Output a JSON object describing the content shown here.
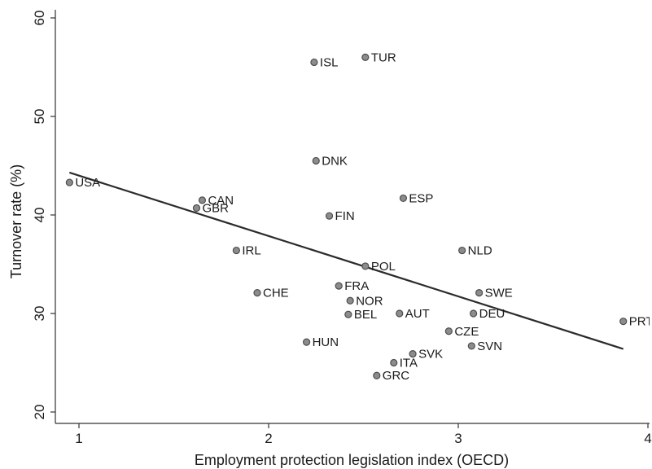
{
  "chart_data": {
    "type": "scatter",
    "title": "",
    "xlabel": "Employment protection legislation index (OECD)",
    "ylabel": "Turnover rate (%)",
    "xlim": [
      0.95,
      4.0
    ],
    "ylim": [
      20,
      60
    ],
    "xticks": [
      1,
      2,
      3,
      4
    ],
    "yticks": [
      20,
      30,
      40,
      50,
      60
    ],
    "x_tick_labels": [
      "1",
      "2",
      "3",
      "4"
    ],
    "y_tick_labels": [
      "20",
      "30",
      "40",
      "50",
      "60"
    ],
    "grid": false,
    "legend": "none",
    "points": [
      {
        "label": "USA",
        "x": 0.95,
        "y": 43.3
      },
      {
        "label": "ISL",
        "x": 2.24,
        "y": 55.5
      },
      {
        "label": "TUR",
        "x": 2.51,
        "y": 56.0
      },
      {
        "label": "DNK",
        "x": 2.25,
        "y": 45.5
      },
      {
        "label": "CAN",
        "x": 1.65,
        "y": 41.5
      },
      {
        "label": "GBR",
        "x": 1.62,
        "y": 40.7
      },
      {
        "label": "ESP",
        "x": 2.71,
        "y": 41.7
      },
      {
        "label": "FIN",
        "x": 2.32,
        "y": 39.9
      },
      {
        "label": "IRL",
        "x": 1.83,
        "y": 36.4
      },
      {
        "label": "NLD",
        "x": 3.02,
        "y": 36.4
      },
      {
        "label": "POL",
        "x": 2.51,
        "y": 34.8
      },
      {
        "label": "CHE",
        "x": 1.94,
        "y": 32.1
      },
      {
        "label": "FRA",
        "x": 2.37,
        "y": 32.8
      },
      {
        "label": "SWE",
        "x": 3.11,
        "y": 32.1
      },
      {
        "label": "NOR",
        "x": 2.43,
        "y": 31.3
      },
      {
        "label": "BEL",
        "x": 2.42,
        "y": 29.9
      },
      {
        "label": "AUT",
        "x": 2.69,
        "y": 30.0
      },
      {
        "label": "DEU",
        "x": 3.08,
        "y": 30.0
      },
      {
        "label": "PRT",
        "x": 3.87,
        "y": 29.2
      },
      {
        "label": "CZE",
        "x": 2.95,
        "y": 28.2
      },
      {
        "label": "HUN",
        "x": 2.2,
        "y": 27.1
      },
      {
        "label": "SVN",
        "x": 3.07,
        "y": 26.7
      },
      {
        "label": "SVK",
        "x": 2.76,
        "y": 25.9
      },
      {
        "label": "ITA",
        "x": 2.66,
        "y": 25.0
      },
      {
        "label": "GRC",
        "x": 2.57,
        "y": 23.7
      }
    ],
    "fit_line": {
      "x": [
        0.95,
        3.87
      ],
      "y": [
        44.3,
        26.4
      ]
    },
    "colors": {
      "point_fill": "#8c8c8c",
      "point_stroke": "#4d4d4d",
      "line": "#2b2b2b",
      "axis": "#333333"
    }
  }
}
